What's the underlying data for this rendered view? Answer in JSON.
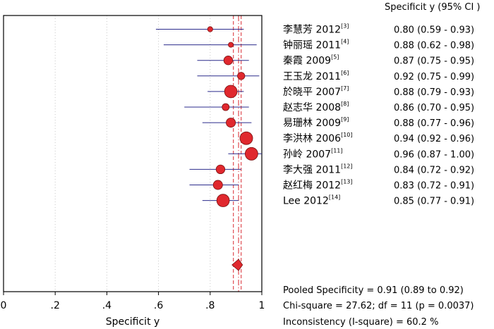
{
  "chart_data": {
    "type": "forest",
    "measure": "Specificity",
    "xlabel": "Specificit y",
    "xlim": [
      0,
      1
    ],
    "xticks": [
      0,
      0.2,
      0.4,
      0.6,
      0.8,
      1
    ],
    "xtick_labels": [
      "0",
      ".2",
      ".4",
      ".6",
      ".8",
      "1"
    ],
    "column_header": "Specificit y (95% CI )",
    "studies": [
      {
        "name": "李慧芳 2012",
        "ref": "[3]",
        "estimate": 0.8,
        "ci": [
          0.59,
          0.93
        ],
        "ci_text": "0.80 (0.59 - 0.93)"
      },
      {
        "name": "钟丽瑶 2011",
        "ref": "[4]",
        "estimate": 0.88,
        "ci": [
          0.62,
          0.98
        ],
        "ci_text": "0.88 (0.62 - 0.98)"
      },
      {
        "name": "秦霞 2009",
        "ref": "[5]",
        "estimate": 0.87,
        "ci": [
          0.75,
          0.95
        ],
        "ci_text": "0.87 (0.75 - 0.95)"
      },
      {
        "name": "王玉龙 2011",
        "ref": "[6]",
        "estimate": 0.92,
        "ci": [
          0.75,
          0.99
        ],
        "ci_text": "0.92 (0.75 - 0.99)"
      },
      {
        "name": "於晓平 2007",
        "ref": "[7]",
        "estimate": 0.88,
        "ci": [
          0.79,
          0.93
        ],
        "ci_text": "0.88 (0.79 - 0.93)"
      },
      {
        "name": "赵志华 2008",
        "ref": "[8]",
        "estimate": 0.86,
        "ci": [
          0.7,
          0.95
        ],
        "ci_text": "0.86 (0.70 - 0.95)"
      },
      {
        "name": "易珊林 2009",
        "ref": "[9]",
        "estimate": 0.88,
        "ci": [
          0.77,
          0.96
        ],
        "ci_text": "0.88 (0.77 - 0.96)"
      },
      {
        "name": "李洪林 2006",
        "ref": "[10]",
        "estimate": 0.94,
        "ci": [
          0.92,
          0.96
        ],
        "ci_text": "0.94 (0.92 - 0.96)"
      },
      {
        "name": "孙岭 2007",
        "ref": "[11]",
        "estimate": 0.96,
        "ci": [
          0.87,
          1.0
        ],
        "ci_text": "0.96 (0.87 - 1.00)"
      },
      {
        "name": "李大强 2011",
        "ref": "[12]",
        "estimate": 0.84,
        "ci": [
          0.72,
          0.92
        ],
        "ci_text": "0.84 (0.72 - 0.92)"
      },
      {
        "name": "赵红梅 2012",
        "ref": "[13]",
        "estimate": 0.83,
        "ci": [
          0.72,
          0.91
        ],
        "ci_text": "0.83 (0.72 - 0.91)"
      },
      {
        "name": "Lee 2012",
        "ref": "[14]",
        "estimate": 0.85,
        "ci": [
          0.77,
          0.91
        ],
        "ci_text": "0.85 (0.77 - 0.91)"
      }
    ],
    "pooled": {
      "estimate": 0.91,
      "ci": [
        0.89,
        0.92
      ]
    },
    "pooled_ref_lines": [
      0.89,
      0.91,
      0.92
    ],
    "stats": {
      "pooled_text": "Pooled Specificity = 0.91 (0.89 to 0.92)",
      "chi_square_text": "Chi-square = 27.62; df = 11 (p = 0.0037)",
      "inconsistency_text": "Inconsistency (I-square) = 60.2 %"
    },
    "colors": {
      "marker_fill": "#e0282e",
      "marker_stroke": "#7a1010",
      "ci_line": "#2b2b8c",
      "ref_line": "#d9272e",
      "grid": "#c8c8c8"
    }
  }
}
